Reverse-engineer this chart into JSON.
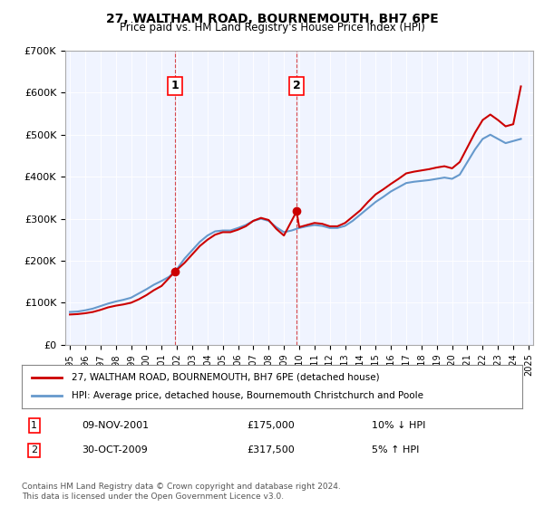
{
  "title": "27, WALTHAM ROAD, BOURNEMOUTH, BH7 6PE",
  "subtitle": "Price paid vs. HM Land Registry's House Price Index (HPI)",
  "legend_line1": "27, WALTHAM ROAD, BOURNEMOUTH, BH7 6PE (detached house)",
  "legend_line2": "HPI: Average price, detached house, Bournemouth Christchurch and Poole",
  "annotation1_label": "1",
  "annotation1_date": "09-NOV-2001",
  "annotation1_price": "£175,000",
  "annotation1_hpi": "10% ↓ HPI",
  "annotation2_label": "2",
  "annotation2_date": "30-OCT-2009",
  "annotation2_price": "£317,500",
  "annotation2_hpi": "5% ↑ HPI",
  "footer": "Contains HM Land Registry data © Crown copyright and database right 2024.\nThis data is licensed under the Open Government Licence v3.0.",
  "price_color": "#cc0000",
  "hpi_color": "#6699cc",
  "annotation_vline_color": "#cc0000",
  "background_color": "#ffffff",
  "plot_bg_color": "#f0f4ff",
  "ylim": [
    0,
    700000
  ],
  "xlabel": "",
  "ylabel": "",
  "years_start": 1995,
  "years_end": 2025,
  "hpi_data": {
    "x": [
      1995.0,
      1995.5,
      1996.0,
      1996.5,
      1997.0,
      1997.5,
      1998.0,
      1998.5,
      1999.0,
      1999.5,
      2000.0,
      2000.5,
      2001.0,
      2001.5,
      2002.0,
      2002.5,
      2003.0,
      2003.5,
      2004.0,
      2004.5,
      2005.0,
      2005.5,
      2006.0,
      2006.5,
      2007.0,
      2007.5,
      2008.0,
      2008.5,
      2009.0,
      2009.5,
      2010.0,
      2010.5,
      2011.0,
      2011.5,
      2012.0,
      2012.5,
      2013.0,
      2013.5,
      2014.0,
      2014.5,
      2015.0,
      2015.5,
      2016.0,
      2016.5,
      2017.0,
      2017.5,
      2018.0,
      2018.5,
      2019.0,
      2019.5,
      2020.0,
      2020.5,
      2021.0,
      2021.5,
      2022.0,
      2022.5,
      2023.0,
      2023.5,
      2024.0,
      2024.5
    ],
    "y": [
      78000,
      79000,
      82000,
      86000,
      92000,
      98000,
      103000,
      107000,
      112000,
      122000,
      132000,
      143000,
      152000,
      162000,
      180000,
      205000,
      225000,
      245000,
      260000,
      270000,
      272000,
      272000,
      278000,
      285000,
      295000,
      300000,
      295000,
      280000,
      268000,
      272000,
      278000,
      282000,
      285000,
      283000,
      278000,
      278000,
      283000,
      295000,
      310000,
      325000,
      340000,
      352000,
      365000,
      375000,
      385000,
      388000,
      390000,
      392000,
      395000,
      398000,
      395000,
      405000,
      435000,
      465000,
      490000,
      500000,
      490000,
      480000,
      485000,
      490000
    ]
  },
  "price_data": {
    "x": [
      1995.0,
      1995.5,
      1996.0,
      1996.5,
      1997.0,
      1997.5,
      1998.0,
      1998.5,
      1999.0,
      1999.5,
      2000.0,
      2000.5,
      2001.0,
      2001.9,
      2002.5,
      2003.0,
      2003.5,
      2004.0,
      2004.5,
      2005.0,
      2005.5,
      2006.0,
      2006.5,
      2007.0,
      2007.5,
      2008.0,
      2008.5,
      2009.0,
      2009.83,
      2010.0,
      2010.5,
      2011.0,
      2011.5,
      2012.0,
      2012.5,
      2013.0,
      2013.5,
      2014.0,
      2014.5,
      2015.0,
      2015.5,
      2016.0,
      2016.5,
      2017.0,
      2017.5,
      2018.0,
      2018.5,
      2019.0,
      2019.5,
      2020.0,
      2020.5,
      2021.0,
      2021.5,
      2022.0,
      2022.5,
      2023.0,
      2023.5,
      2024.0,
      2024.5
    ],
    "y": [
      72000,
      73000,
      75000,
      78000,
      83000,
      89000,
      93000,
      96000,
      100000,
      108000,
      118000,
      130000,
      140000,
      175000,
      195000,
      215000,
      235000,
      250000,
      262000,
      268000,
      268000,
      274000,
      282000,
      295000,
      302000,
      297000,
      276000,
      260000,
      317500,
      280000,
      285000,
      290000,
      288000,
      282000,
      282000,
      290000,
      305000,
      320000,
      340000,
      358000,
      370000,
      383000,
      395000,
      408000,
      412000,
      415000,
      418000,
      422000,
      425000,
      420000,
      435000,
      470000,
      505000,
      535000,
      548000,
      535000,
      520000,
      525000,
      615000
    ]
  },
  "sale1_x": 2001.856,
  "sale1_y": 175000,
  "sale2_x": 2009.83,
  "sale2_y": 317500,
  "yticks": [
    0,
    100000,
    200000,
    300000,
    400000,
    500000,
    600000,
    700000
  ],
  "ytick_labels": [
    "£0",
    "£100K",
    "£200K",
    "£300K",
    "£400K",
    "£500K",
    "£600K",
    "£700K"
  ],
  "xticks": [
    1995,
    1996,
    1997,
    1998,
    1999,
    2000,
    2001,
    2002,
    2003,
    2004,
    2005,
    2006,
    2007,
    2008,
    2009,
    2010,
    2011,
    2012,
    2013,
    2014,
    2015,
    2016,
    2017,
    2018,
    2019,
    2020,
    2021,
    2022,
    2023,
    2024,
    2025
  ]
}
